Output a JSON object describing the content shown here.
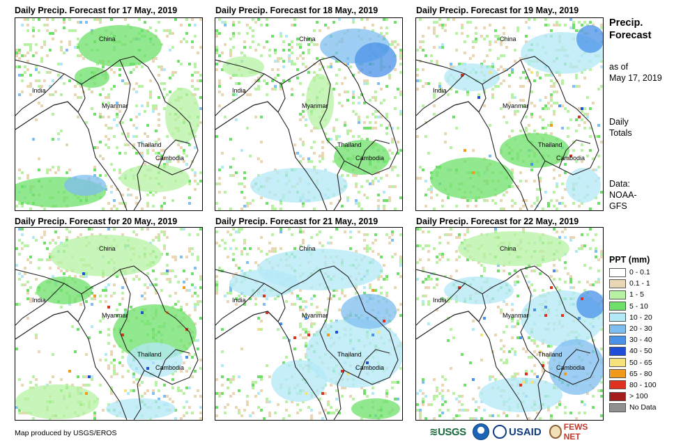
{
  "panels": [
    {
      "title": "Daily Precip. Forecast for 17 May., 2019"
    },
    {
      "title": "Daily Precip. Forecast for 18 May., 2019"
    },
    {
      "title": "Daily Precip. Forecast for 19 May., 2019"
    },
    {
      "title": "Daily Precip. Forecast for 20 May., 2019"
    },
    {
      "title": "Daily Precip. Forecast for 21 May., 2019"
    },
    {
      "title": "Daily Precip. Forecast for 22 May., 2019"
    }
  ],
  "map_labels": {
    "china": "China",
    "india": "India",
    "myanmar": "Myanmar",
    "thailand": "Thailand",
    "cambodia": "Cambodia"
  },
  "side": {
    "title_line1": "Precip.",
    "title_line2": "Forecast",
    "asof_line1": "as of",
    "asof_line2": "May 17, 2019",
    "daily_line1": "Daily",
    "daily_line2": "Totals",
    "data_line1": "Data:",
    "data_line2": "NOAA-",
    "data_line3": "GFS"
  },
  "legend": {
    "title": "PPT (mm)",
    "items": [
      {
        "label": "0 - 0.1",
        "color": "#ffffff"
      },
      {
        "label": "0.1 - 1",
        "color": "#e8d6b4"
      },
      {
        "label": "1 - 5",
        "color": "#b6f2a2"
      },
      {
        "label": "5 - 10",
        "color": "#6ee06a"
      },
      {
        "label": "10 - 20",
        "color": "#b3e8f7"
      },
      {
        "label": "20 - 30",
        "color": "#7fbef0"
      },
      {
        "label": "30 - 40",
        "color": "#4a91e8"
      },
      {
        "label": "40 - 50",
        "color": "#1f4fd8"
      },
      {
        "label": "50 - 65",
        "color": "#f6e27a"
      },
      {
        "label": "65 - 80",
        "color": "#f29a1b"
      },
      {
        "label": "80 - 100",
        "color": "#e0301e"
      },
      {
        "label": "> 100",
        "color": "#a51c1c"
      },
      {
        "label": "No Data",
        "color": "#909090"
      }
    ]
  },
  "credit": "Map produced by USGS/EROS",
  "logos": {
    "usgs": "≋USGS",
    "usaid": "USAID",
    "fews": "FEWS NET"
  }
}
